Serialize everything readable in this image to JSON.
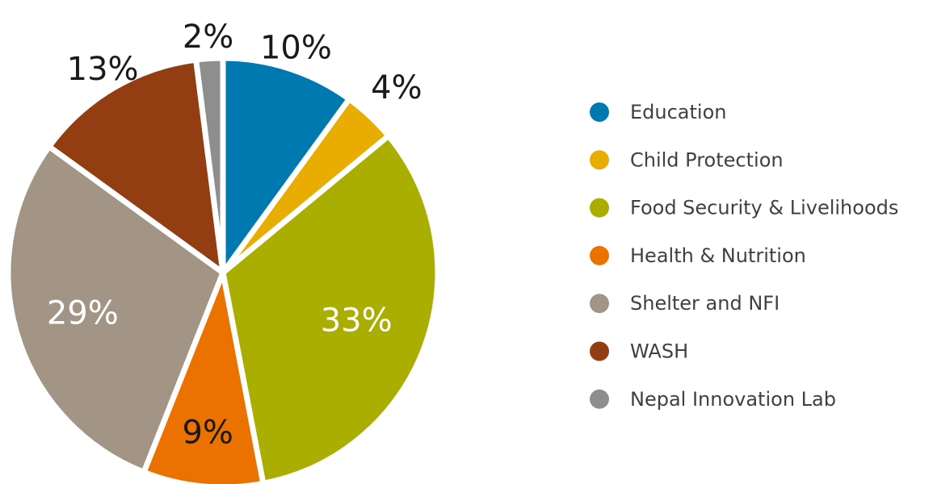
{
  "chart_data": {
    "type": "pie",
    "categories": [
      "Education",
      "Child Protection",
      "Food Security & Livelihoods",
      "Health & Nutrition",
      "Shelter and NFI",
      "WASH",
      "Nepal Innovation Lab"
    ],
    "values": [
      10,
      4,
      33,
      9,
      29,
      13,
      2
    ],
    "data_labels": [
      "10%",
      "4%",
      "33%",
      "9%",
      "29%",
      "13%",
      "2%"
    ],
    "colors": [
      "#0079b0",
      "#e8ad00",
      "#aaae00",
      "#ec7200",
      "#a39585",
      "#923e12",
      "#8e8e8e"
    ],
    "label_colors": [
      "#1a1a1a",
      "#1a1a1a",
      "#ffffff",
      "#1a1a1a",
      "#ffffff",
      "#1a1a1a",
      "#1a1a1a"
    ],
    "legend_position": "right",
    "start_angle": "12 o'clock",
    "direction": "clockwise"
  }
}
